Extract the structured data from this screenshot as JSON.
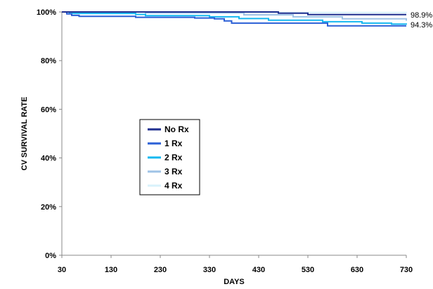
{
  "chart_data": {
    "type": "line",
    "title": "",
    "xlabel": "DAYS",
    "ylabel": "CV SURVIVAL RATE",
    "xlim": [
      30,
      730
    ],
    "ylim": [
      0,
      100
    ],
    "x_ticks": [
      30,
      130,
      230,
      330,
      430,
      530,
      630,
      730
    ],
    "x_tick_labels": [
      "30",
      "130",
      "230",
      "330",
      "430",
      "530",
      "630",
      "730"
    ],
    "y_ticks": [
      0,
      20,
      40,
      60,
      80,
      100
    ],
    "y_tick_labels": [
      "0%",
      "20%",
      "40%",
      "60%",
      "80%",
      "100%"
    ],
    "grid": false,
    "legend_position": "center-left",
    "annotations": [
      {
        "text": "98.9%",
        "x": 730,
        "y": 98.9
      },
      {
        "text": "94.3%",
        "x": 730,
        "y": 94.8
      }
    ],
    "series": [
      {
        "name": "No Rx",
        "color": "#1f2f8f",
        "step": true,
        "points": [
          [
            30,
            100
          ],
          [
            470,
            100
          ],
          [
            470,
            99.5
          ],
          [
            530,
            99.5
          ],
          [
            530,
            98.9
          ],
          [
            730,
            98.9
          ]
        ]
      },
      {
        "name": "1 Rx",
        "color": "#2a5fd6",
        "step": true,
        "points": [
          [
            30,
            100
          ],
          [
            40,
            99.2
          ],
          [
            50,
            98.6
          ],
          [
            65,
            98.2
          ],
          [
            160,
            98.2
          ],
          [
            180,
            97.8
          ],
          [
            260,
            97.8
          ],
          [
            300,
            97.5
          ],
          [
            340,
            97.2
          ],
          [
            360,
            96.3
          ],
          [
            375,
            95.4
          ],
          [
            560,
            95.4
          ],
          [
            570,
            94.3
          ],
          [
            730,
            94.3
          ]
        ]
      },
      {
        "name": "2 Rx",
        "color": "#16b8f0",
        "step": true,
        "points": [
          [
            30,
            100
          ],
          [
            45,
            99.4
          ],
          [
            180,
            99.0
          ],
          [
            200,
            98.5
          ],
          [
            330,
            98.0
          ],
          [
            390,
            97.3
          ],
          [
            450,
            96.6
          ],
          [
            560,
            96.0
          ],
          [
            640,
            95.4
          ],
          [
            700,
            95.0
          ],
          [
            730,
            94.8
          ]
        ]
      },
      {
        "name": "3 Rx",
        "color": "#9fc3e6",
        "step": true,
        "points": [
          [
            30,
            100
          ],
          [
            200,
            99.6
          ],
          [
            400,
            98.8
          ],
          [
            500,
            98.0
          ],
          [
            600,
            97.2
          ],
          [
            730,
            96.4
          ]
        ]
      },
      {
        "name": "4 Rx",
        "color": "#d8f2fb",
        "step": true,
        "points": [
          [
            30,
            100
          ],
          [
            300,
            99.8
          ],
          [
            730,
            99.6
          ]
        ]
      }
    ]
  }
}
